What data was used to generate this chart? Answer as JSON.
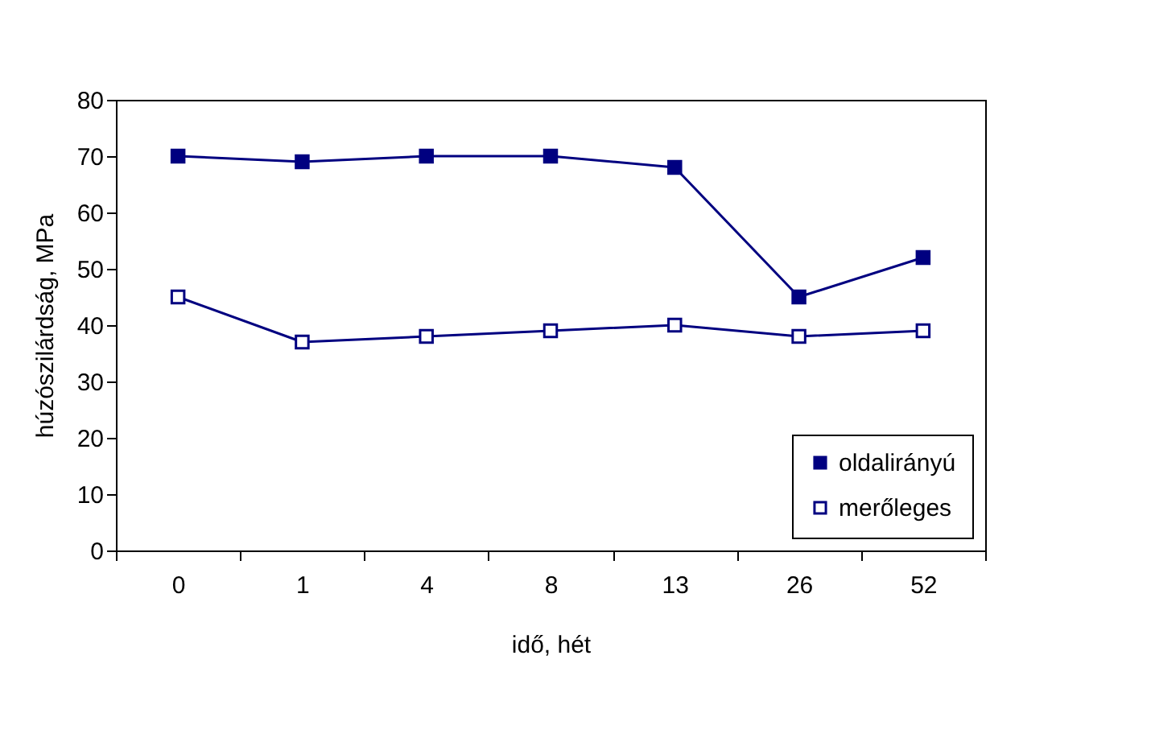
{
  "chart_data": {
    "type": "line",
    "xlabel": "idő, hét",
    "ylabel": "húzószilárdság, MPa",
    "categories": [
      "0",
      "1",
      "4",
      "8",
      "13",
      "26",
      "52"
    ],
    "series": [
      {
        "name": "oldalirányú",
        "color": "#000080",
        "values": [
          70,
          69,
          70,
          70,
          68,
          45,
          52
        ]
      },
      {
        "name": "merőleges",
        "color": "#000080",
        "values": [
          45,
          37,
          38,
          39,
          40,
          38,
          39
        ]
      }
    ],
    "ylim": [
      0,
      80
    ],
    "yticks": [
      0,
      10,
      20,
      30,
      40,
      50,
      60,
      70,
      80
    ],
    "grid": false,
    "legend": "bottom right",
    "marker": "square",
    "line_style": "solid"
  }
}
